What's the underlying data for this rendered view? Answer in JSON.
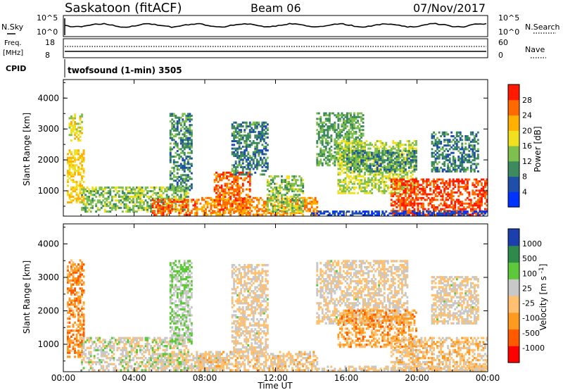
{
  "header": {
    "station": "Saskatoon (fitACF)",
    "beam": "Beam 06",
    "date": "07/Nov/2017"
  },
  "status_panels": {
    "nsky_label": "N.Sky",
    "nsky_ticks": [
      "10^5",
      "10^0"
    ],
    "nsearch_label": "N.Search",
    "nsearch_ticks": [
      "10^5",
      "10^0"
    ],
    "freq_label": "Freq.",
    "freq_unit": "[MHz]",
    "freq_ticks": [
      "18",
      "8"
    ],
    "nave_label": "Nave",
    "nave_ticks": [
      "60",
      "0"
    ],
    "cpid_label": "CPID",
    "cpid_text": "twofsound (1-min) 3505"
  },
  "colors": {
    "power": [
      "#0033ff",
      "#1f4fa8",
      "#3d8a5e",
      "#7fbf4d",
      "#f0e020",
      "#ffb000",
      "#ff6a00",
      "#ff1a00"
    ],
    "velocity": [
      "#ff0000",
      "#ff5a00",
      "#ff9a20",
      "#ffc070",
      "#c8c8c8",
      "#5dc83a",
      "#2e8a4a",
      "#1c3fae"
    ]
  },
  "chart_data": [
    {
      "type": "heatmap",
      "title": "Power",
      "ylabel": "Slant Range [km]",
      "ylim": [
        180,
        4600
      ],
      "y_ticks": [
        "4000",
        "3000",
        "2000",
        "1000"
      ],
      "x_ticks": [
        "00:00",
        "04:00",
        "08:00",
        "12:00",
        "16:00",
        "20:00",
        "00:00"
      ],
      "colorbar_label": "Power [dB]",
      "colorbar_ticks": [
        "28",
        "24",
        "20",
        "16",
        "12",
        "8",
        "4"
      ],
      "colorbar_range": [
        0,
        32
      ],
      "regions": [
        {
          "t": [
            0.2,
            1.2
          ],
          "r": [
            600,
            2300
          ],
          "v": 20
        },
        {
          "t": [
            0.3,
            1.0
          ],
          "r": [
            2600,
            3500
          ],
          "v": 18
        },
        {
          "t": [
            1.0,
            7.0
          ],
          "r": [
            300,
            1100
          ],
          "v": 14
        },
        {
          "t": [
            5.0,
            7.5
          ],
          "r": [
            200,
            700
          ],
          "v": 26
        },
        {
          "t": [
            6.0,
            7.2
          ],
          "r": [
            1000,
            3500
          ],
          "v": 10
        },
        {
          "t": [
            7.5,
            14.3
          ],
          "r": [
            200,
            800
          ],
          "v": 24
        },
        {
          "t": [
            8.5,
            10.5
          ],
          "r": [
            300,
            1600
          ],
          "v": 26
        },
        {
          "t": [
            9.5,
            11.5
          ],
          "r": [
            1500,
            3200
          ],
          "v": 9
        },
        {
          "t": [
            11.5,
            13.5
          ],
          "r": [
            300,
            1500
          ],
          "v": 14
        },
        {
          "t": [
            14.3,
            17.0
          ],
          "r": [
            1800,
            3500
          ],
          "v": 12
        },
        {
          "t": [
            15.5,
            20.0
          ],
          "r": [
            900,
            2600
          ],
          "v": 16
        },
        {
          "t": [
            16.0,
            20.0
          ],
          "r": [
            1600,
            2300
          ],
          "v": 10
        },
        {
          "t": [
            18.5,
            24.0
          ],
          "r": [
            200,
            1400
          ],
          "v": 28
        },
        {
          "t": [
            20.8,
            23.5
          ],
          "r": [
            1600,
            2900
          ],
          "v": 9
        },
        {
          "t": [
            14.0,
            24.0
          ],
          "r": [
            180,
            350
          ],
          "v": 4
        }
      ]
    },
    {
      "type": "heatmap",
      "title": "Velocity",
      "ylabel": "Slant Range [km]",
      "ylim": [
        180,
        4600
      ],
      "y_ticks": [
        "4000",
        "3000",
        "2000",
        "1000"
      ],
      "x_ticks": [
        "00:00",
        "04:00",
        "08:00",
        "12:00",
        "16:00",
        "20:00",
        "00:00"
      ],
      "xlabel": "Time UT",
      "colorbar_label": "Velocity [m s^-1]",
      "colorbar_ticks": [
        "1000",
        "500",
        "100",
        "25",
        "-25",
        "-100",
        "-500",
        "-1000"
      ],
      "colorbar_range": [
        -1200,
        1200
      ],
      "regions": [
        {
          "t": [
            0.2,
            1.2
          ],
          "r": [
            600,
            3500
          ],
          "v": -500
        },
        {
          "t": [
            1.0,
            7.0
          ],
          "r": [
            200,
            1200
          ],
          "v": 100
        },
        {
          "t": [
            5.0,
            9.0
          ],
          "r": [
            200,
            700
          ],
          "v": 60
        },
        {
          "t": [
            6.0,
            7.2
          ],
          "r": [
            1000,
            3500
          ],
          "v": 300
        },
        {
          "t": [
            7.5,
            14.3
          ],
          "r": [
            200,
            800
          ],
          "v": -80
        },
        {
          "t": [
            9.5,
            11.5
          ],
          "r": [
            700,
            3400
          ],
          "v": 10
        },
        {
          "t": [
            14.3,
            19.5
          ],
          "r": [
            1600,
            3500
          ],
          "v": 5
        },
        {
          "t": [
            15.5,
            20.0
          ],
          "r": [
            900,
            2000
          ],
          "v": -400
        },
        {
          "t": [
            18.5,
            24.0
          ],
          "r": [
            200,
            1200
          ],
          "v": -150
        },
        {
          "t": [
            20.8,
            23.5
          ],
          "r": [
            1600,
            3000
          ],
          "v": 10
        },
        {
          "t": [
            14.0,
            24.0
          ],
          "r": [
            180,
            350
          ],
          "v": -20
        }
      ]
    }
  ]
}
